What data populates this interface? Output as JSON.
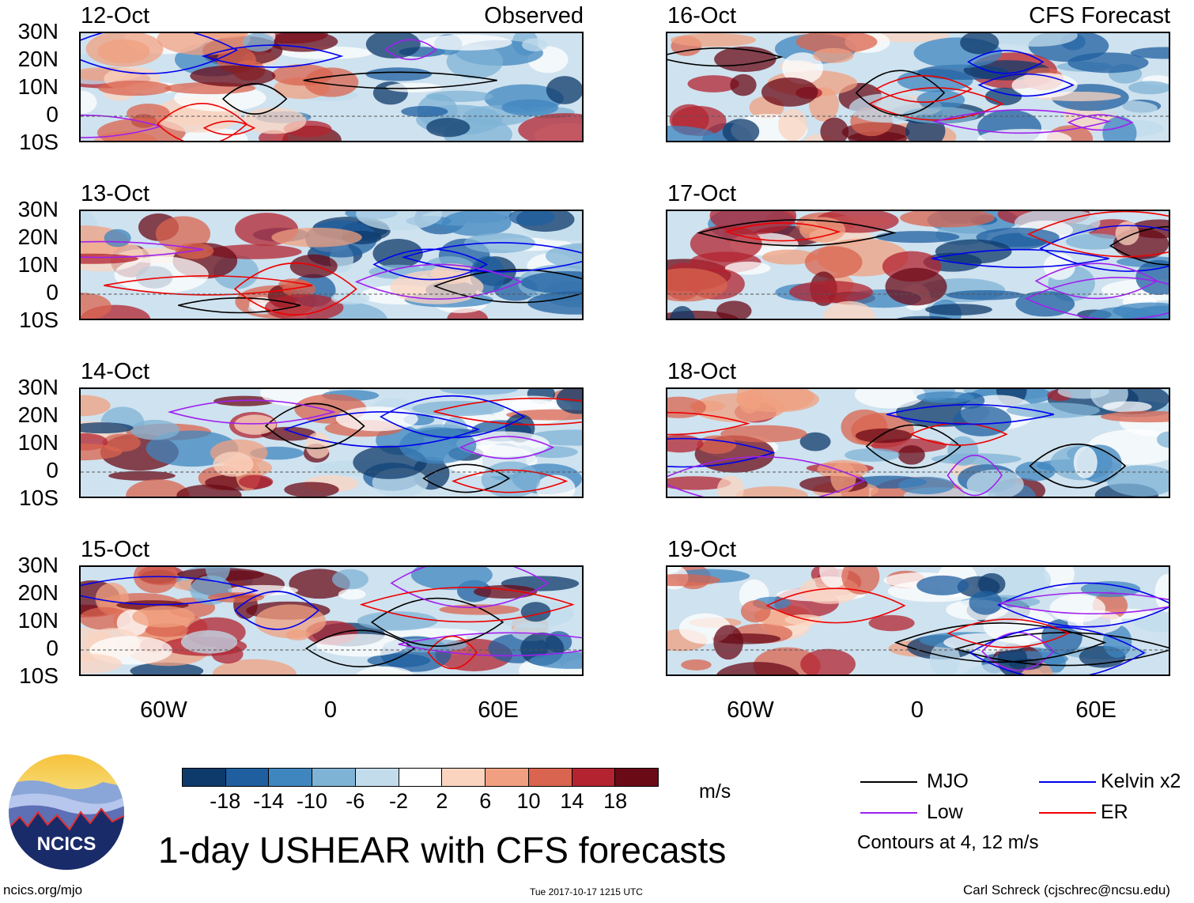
{
  "title": "1-day USHEAR with CFS forecasts",
  "left_tag": "Observed",
  "right_tag": "CFS Forecast",
  "lat_labels": [
    "30N",
    "20N",
    "10N",
    "0",
    "10S"
  ],
  "lon_labels": [
    "60W",
    "0",
    "60E"
  ],
  "panels_left": [
    {
      "date": "12-Oct"
    },
    {
      "date": "13-Oct"
    },
    {
      "date": "14-Oct"
    },
    {
      "date": "15-Oct"
    }
  ],
  "panels_right": [
    {
      "date": "16-Oct"
    },
    {
      "date": "17-Oct"
    },
    {
      "date": "18-Oct"
    },
    {
      "date": "19-Oct"
    }
  ],
  "colorbar": {
    "units": "m/s",
    "labels": [
      "-18",
      "-14",
      "-10",
      "-6",
      "-2",
      "2",
      "6",
      "10",
      "14",
      "18"
    ],
    "colors": [
      "#0d3a6b",
      "#1f5fa0",
      "#3f86bf",
      "#7fb3d6",
      "#c2dcec",
      "#ffffff",
      "#fbd4c0",
      "#f0a080",
      "#d9644f",
      "#b32330",
      "#6a0a17"
    ]
  },
  "legend": {
    "items": [
      {
        "label": "MJO",
        "color": "#000000"
      },
      {
        "label": "Kelvin x2",
        "color": "#0000ee"
      },
      {
        "label": "Low",
        "color": "#a020f0"
      },
      {
        "label": "ER",
        "color": "#ee0000"
      }
    ],
    "note": "Contours at 4, 12 m/s"
  },
  "logo_text": "NCICS",
  "footer": {
    "url": "ncics.org/mjo",
    "timestamp": "Tue 2017-10-17 1215 UTC",
    "credit": "Carl Schreck (cjschrec@ncsu.edu)"
  }
}
